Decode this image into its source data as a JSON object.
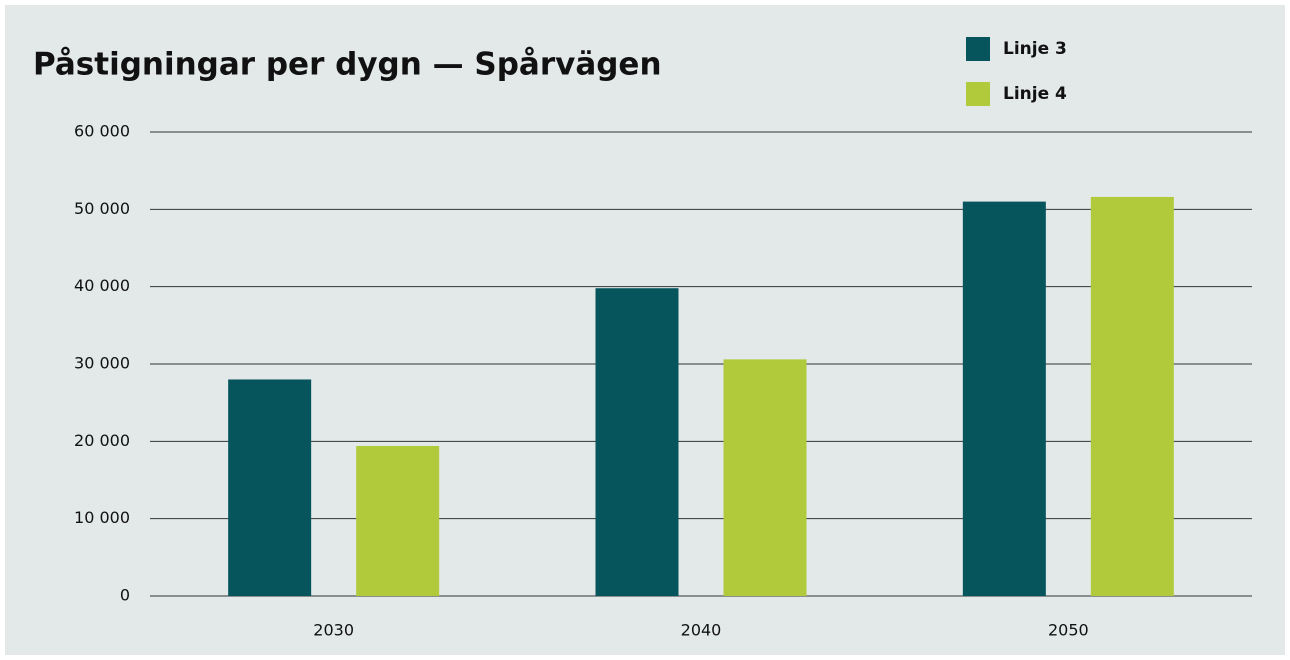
{
  "chart_data": {
    "type": "bar",
    "title": "Påstigningar per dygn — Spårvägen",
    "categories": [
      "2030",
      "2040",
      "2050"
    ],
    "series": [
      {
        "name": "Linje 3",
        "color": "#06555c",
        "values": [
          28000,
          39800,
          51000
        ]
      },
      {
        "name": "Linje 4",
        "color": "#b0ca3c",
        "values": [
          19400,
          30600,
          51600
        ]
      }
    ],
    "ylim": [
      0,
      60000
    ],
    "yticks": [
      0,
      {
        "value": 10000,
        "label": "10 000"
      },
      {
        "value": 20000,
        "label": "20 000"
      },
      {
        "value": 30000,
        "label": "30 000"
      },
      {
        "value": 40000,
        "label": "40 000"
      },
      {
        "value": 50000,
        "label": "50 000"
      },
      {
        "value": 60000,
        "label": "60 000"
      }
    ],
    "grid": true,
    "legend": "top-right"
  }
}
